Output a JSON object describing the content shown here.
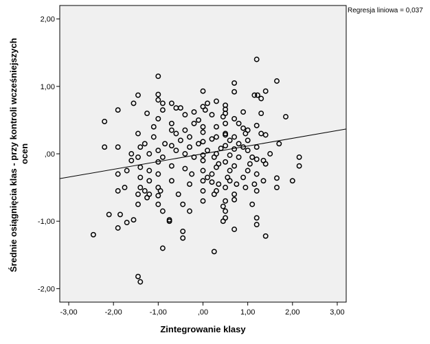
{
  "chart_data": {
    "type": "scatter",
    "title": "",
    "xlabel": "Zintegrowanie klasy",
    "ylabel_lines": [
      "Średnie osiągnięcia klas - przy kontroli wcześniejszych",
      "ocen"
    ],
    "xlim": [
      -3.2,
      3.2
    ],
    "ylim": [
      -2.2,
      2.2
    ],
    "x_ticks": [
      -3,
      -2,
      -1,
      0,
      1,
      2,
      3
    ],
    "x_tick_labels": [
      "-3,00",
      "-2,00",
      "-1,00",
      ",00",
      "1,00",
      "2,00",
      "3,00"
    ],
    "y_ticks": [
      -2,
      -1,
      0,
      1,
      2
    ],
    "y_tick_labels": [
      "-2,00",
      "-1,00",
      ",00",
      "1,00",
      "2,00"
    ],
    "fit_line": {
      "label": "Regresja liniowa = 0,037",
      "intercept": 0.0,
      "slope": 0.115
    },
    "plot_background": "#f0f0f0",
    "marker_color": "#000000",
    "points": [
      [
        1.2,
        1.4
      ],
      [
        -1.0,
        1.15
      ],
      [
        1.65,
        1.08
      ],
      [
        0.7,
        1.05
      ],
      [
        -1.45,
        0.87
      ],
      [
        -1.0,
        0.88
      ],
      [
        0.0,
        0.93
      ],
      [
        1.4,
        0.93
      ],
      [
        1.15,
        0.87
      ],
      [
        1.22,
        0.87
      ],
      [
        0.7,
        0.92
      ],
      [
        -1.0,
        0.8
      ],
      [
        -0.9,
        0.75
      ],
      [
        -0.7,
        0.75
      ],
      [
        0.1,
        0.75
      ],
      [
        0.3,
        0.78
      ],
      [
        0.5,
        0.72
      ],
      [
        1.3,
        0.82
      ],
      [
        -1.55,
        0.75
      ],
      [
        -1.9,
        0.65
      ],
      [
        -0.9,
        0.65
      ],
      [
        -0.6,
        0.68
      ],
      [
        -0.5,
        0.68
      ],
      [
        0.0,
        0.7
      ],
      [
        0.5,
        0.66
      ],
      [
        -1.25,
        0.6
      ],
      [
        -1.0,
        0.52
      ],
      [
        -0.4,
        0.58
      ],
      [
        -0.2,
        0.62
      ],
      [
        0.2,
        0.58
      ],
      [
        0.5,
        0.6
      ],
      [
        0.9,
        0.62
      ],
      [
        1.3,
        0.6
      ],
      [
        1.85,
        0.55
      ],
      [
        -0.1,
        0.5
      ],
      [
        0.7,
        0.52
      ],
      [
        0.5,
        0.45
      ],
      [
        -0.7,
        0.45
      ],
      [
        -2.2,
        0.48
      ],
      [
        0.0,
        0.4
      ],
      [
        0.3,
        0.4
      ],
      [
        1.2,
        0.42
      ],
      [
        0.9,
        0.38
      ],
      [
        -0.4,
        0.35
      ],
      [
        -0.7,
        0.35
      ],
      [
        1.0,
        0.35
      ],
      [
        1.3,
        0.3
      ],
      [
        -1.45,
        0.3
      ],
      [
        -0.6,
        0.3
      ],
      [
        0.0,
        0.32
      ],
      [
        0.5,
        0.28
      ],
      [
        1.4,
        0.28
      ],
      [
        -0.3,
        0.25
      ],
      [
        0.2,
        0.22
      ],
      [
        0.7,
        0.25
      ],
      [
        1.0,
        0.2
      ],
      [
        -1.1,
        0.25
      ],
      [
        -0.5,
        0.2
      ],
      [
        0.0,
        0.18
      ],
      [
        0.8,
        0.15
      ],
      [
        1.7,
        0.15
      ],
      [
        -1.3,
        0.15
      ],
      [
        -0.7,
        0.12
      ],
      [
        0.5,
        0.12
      ],
      [
        1.2,
        0.1
      ],
      [
        -2.2,
        0.1
      ],
      [
        -1.9,
        0.1
      ],
      [
        -1.4,
        0.1
      ],
      [
        -1.0,
        0.05
      ],
      [
        0.1,
        0.05
      ],
      [
        0.4,
        0.08
      ],
      [
        0.7,
        0.07
      ],
      [
        1.0,
        0.05
      ],
      [
        1.5,
        0.0
      ],
      [
        -1.6,
        0.0
      ],
      [
        -1.2,
        0.0
      ],
      [
        -0.4,
        0.0
      ],
      [
        0.0,
        -0.02
      ],
      [
        0.3,
        0.0
      ],
      [
        0.6,
        -0.02
      ],
      [
        1.1,
        -0.05
      ],
      [
        2.15,
        -0.05
      ],
      [
        -1.45,
        -0.05
      ],
      [
        -0.9,
        -0.05
      ],
      [
        -0.2,
        -0.05
      ],
      [
        0.25,
        -0.05
      ],
      [
        0.8,
        -0.05
      ],
      [
        1.35,
        -0.1
      ],
      [
        -1.6,
        -0.1
      ],
      [
        -1.0,
        -0.12
      ],
      [
        0.0,
        -0.1
      ],
      [
        0.5,
        -0.12
      ],
      [
        1.2,
        -0.08
      ],
      [
        2.15,
        -0.18
      ],
      [
        -1.4,
        -0.2
      ],
      [
        -0.7,
        -0.18
      ],
      [
        0.3,
        -0.2
      ],
      [
        0.7,
        -0.18
      ],
      [
        1.05,
        -0.15
      ],
      [
        1.4,
        -0.15
      ],
      [
        -1.7,
        -0.25
      ],
      [
        -1.2,
        -0.25
      ],
      [
        -0.4,
        -0.22
      ],
      [
        0.0,
        -0.25
      ],
      [
        0.6,
        -0.25
      ],
      [
        -1.9,
        -0.3
      ],
      [
        -1.0,
        -0.3
      ],
      [
        0.2,
        -0.3
      ],
      [
        1.2,
        -0.3
      ],
      [
        -1.4,
        -0.35
      ],
      [
        -0.7,
        -0.4
      ],
      [
        0.2,
        -0.42
      ],
      [
        0.55,
        -0.35
      ],
      [
        0.9,
        -0.35
      ],
      [
        1.65,
        -0.36
      ],
      [
        2.0,
        -0.4
      ],
      [
        -1.2,
        -0.4
      ],
      [
        0.0,
        -0.4
      ],
      [
        0.35,
        -0.45
      ],
      [
        0.75,
        -0.45
      ],
      [
        1.15,
        -0.45
      ],
      [
        -1.75,
        -0.5
      ],
      [
        -1.4,
        -0.5
      ],
      [
        -1.0,
        -0.5
      ],
      [
        -0.3,
        -0.45
      ],
      [
        0.5,
        -0.5
      ],
      [
        0.95,
        -0.5
      ],
      [
        1.65,
        -0.5
      ],
      [
        -1.9,
        -0.55
      ],
      [
        -1.3,
        -0.55
      ],
      [
        -0.95,
        -0.55
      ],
      [
        0.0,
        -0.55
      ],
      [
        0.3,
        -0.55
      ],
      [
        1.2,
        -0.55
      ],
      [
        -1.45,
        -0.6
      ],
      [
        -1.2,
        -0.6
      ],
      [
        -0.55,
        -0.6
      ],
      [
        0.25,
        -0.6
      ],
      [
        0.7,
        -0.6
      ],
      [
        -1.0,
        -0.62
      ],
      [
        -1.25,
        -0.65
      ],
      [
        0.0,
        -0.7
      ],
      [
        0.5,
        -0.7
      ],
      [
        0.7,
        -0.68
      ],
      [
        -1.45,
        -0.75
      ],
      [
        -1.0,
        -0.75
      ],
      [
        -0.45,
        -0.75
      ],
      [
        0.45,
        -0.78
      ],
      [
        1.1,
        -0.75
      ],
      [
        -0.9,
        -0.85
      ],
      [
        -0.3,
        -0.85
      ],
      [
        0.5,
        -0.85
      ],
      [
        -2.1,
        -0.9
      ],
      [
        -1.85,
        -0.9
      ],
      [
        0.5,
        -0.95
      ],
      [
        1.2,
        -0.95
      ],
      [
        -1.55,
        -0.98
      ],
      [
        -0.75,
        -0.98
      ],
      [
        -1.7,
        -1.02
      ],
      [
        -0.75,
        -1.0
      ],
      [
        0.45,
        -1.0
      ],
      [
        1.2,
        -1.05
      ],
      [
        -1.9,
        -1.1
      ],
      [
        0.7,
        -1.12
      ],
      [
        -2.45,
        -1.2
      ],
      [
        -0.45,
        -1.15
      ],
      [
        -0.45,
        -1.25
      ],
      [
        1.4,
        -1.22
      ],
      [
        -0.9,
        -1.4
      ],
      [
        0.25,
        -1.45
      ],
      [
        -1.45,
        -1.82
      ],
      [
        -1.4,
        -1.9
      ],
      [
        0.5,
        0.3
      ],
      [
        -0.2,
        0.45
      ],
      [
        0.9,
        0.1
      ],
      [
        0.35,
        -0.15
      ],
      [
        -0.1,
        0.15
      ],
      [
        0.6,
        0.2
      ],
      [
        1.0,
        -0.25
      ],
      [
        -0.85,
        0.15
      ],
      [
        0.45,
        0.55
      ],
      [
        -0.3,
        0.1
      ],
      [
        0.1,
        -0.35
      ],
      [
        0.8,
        0.45
      ],
      [
        -0.6,
        0.05
      ],
      [
        0.3,
        0.25
      ],
      [
        1.35,
        -0.4
      ],
      [
        -1.1,
        0.4
      ],
      [
        0.05,
        0.65
      ],
      [
        0.6,
        -0.4
      ],
      [
        -0.25,
        -0.3
      ],
      [
        0.95,
        0.3
      ]
    ]
  }
}
